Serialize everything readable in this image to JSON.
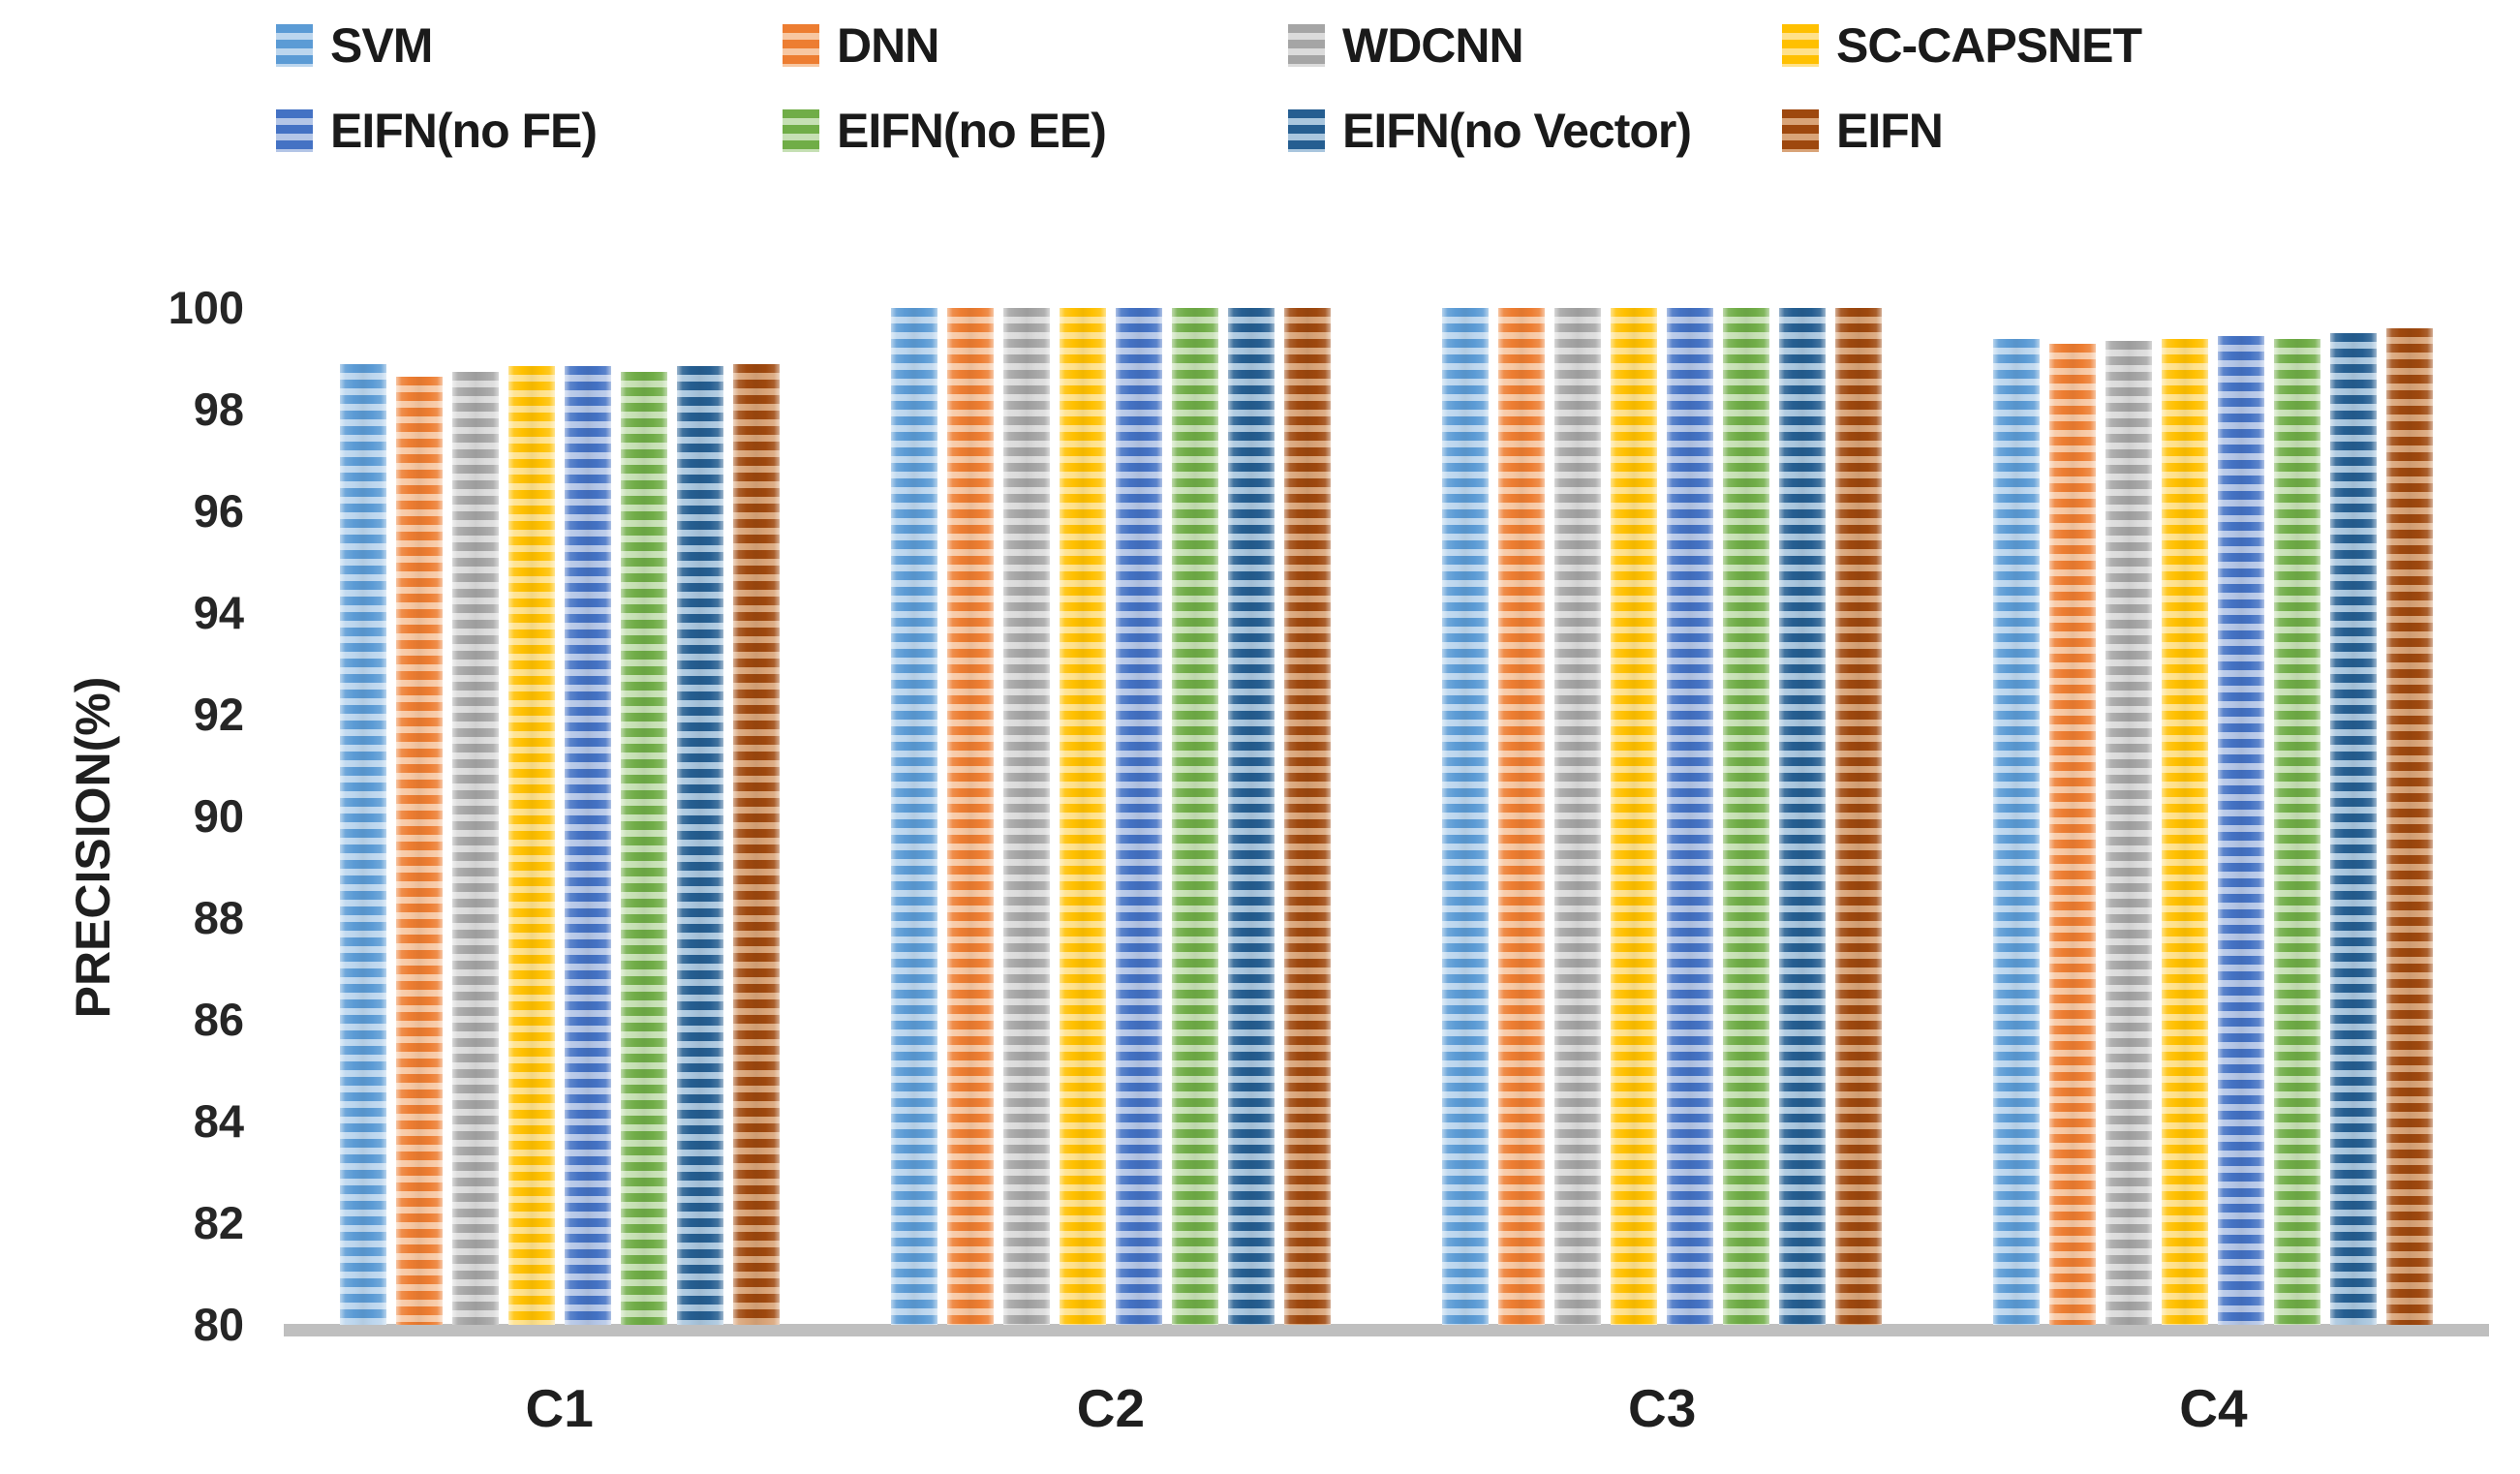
{
  "chart_data": {
    "type": "bar",
    "title": "",
    "xlabel": "",
    "ylabel": "PRECISION(%)",
    "ylim": [
      80,
      100
    ],
    "yticks": [
      80,
      82,
      84,
      86,
      88,
      90,
      92,
      94,
      96,
      98,
      100
    ],
    "grid": false,
    "legend_position": "top",
    "axis_line_color": "#BFBFBF",
    "bar_fill_style": "horizontal-stripes",
    "categories": [
      "C1",
      "C2",
      "C3",
      "C4"
    ],
    "series": [
      {
        "name": "SVM",
        "color": "#5B9BD5",
        "color_light": "#BCD6EE",
        "values": [
          98.9,
          100,
          100,
          99.4
        ]
      },
      {
        "name": "DNN",
        "color": "#ED7D31",
        "color_light": "#F7C7A2",
        "values": [
          98.65,
          100,
          100,
          99.3
        ]
      },
      {
        "name": "WDCNN",
        "color": "#A5A5A5",
        "color_light": "#DBDBDB",
        "values": [
          98.75,
          100,
          100,
          99.35
        ]
      },
      {
        "name": "SC-CAPSNET",
        "color": "#FFC000",
        "color_light": "#FFE18A",
        "values": [
          98.85,
          100,
          100,
          99.4
        ]
      },
      {
        "name": "EIFN(no FE)",
        "color": "#4472C4",
        "color_light": "#B4C6E7",
        "values": [
          98.85,
          100,
          100,
          99.45
        ]
      },
      {
        "name": "EIFN(no EE)",
        "color": "#70AD47",
        "color_light": "#C6E0B4",
        "values": [
          98.75,
          100,
          100,
          99.4
        ]
      },
      {
        "name": "EIFN(no Vector)",
        "color": "#255E91",
        "color_light": "#A9C6DE",
        "values": [
          98.85,
          100,
          100,
          99.5
        ]
      },
      {
        "name": "EIFN",
        "color": "#9E480E",
        "color_light": "#D9A478",
        "values": [
          98.9,
          100,
          100,
          99.6
        ]
      }
    ]
  }
}
